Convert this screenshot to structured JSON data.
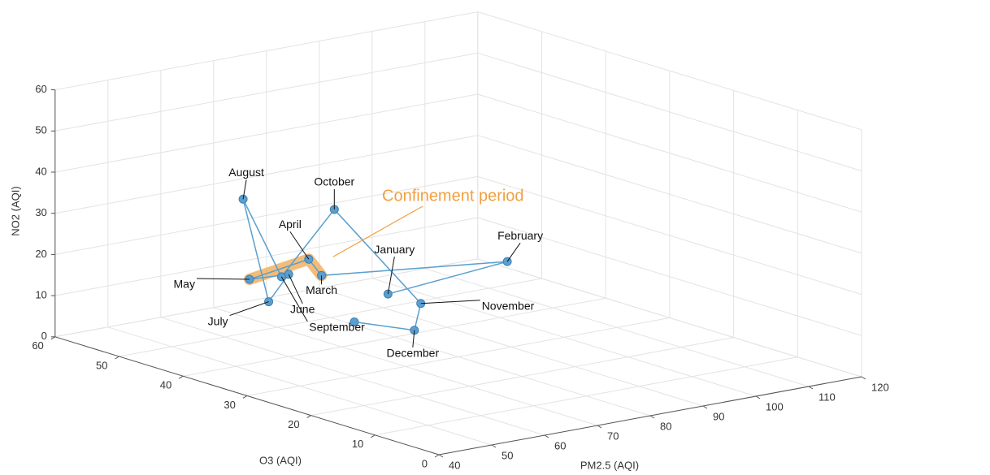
{
  "chart_data": {
    "type": "line3d",
    "xlabel": "PM2.5 (AQI)",
    "ylabel": "O3 (AQI)",
    "zlabel": "NO2 (AQI)",
    "categories": [
      "January",
      "February",
      "March",
      "April",
      "May",
      "June",
      "July",
      "August",
      "September",
      "October",
      "November",
      "December",
      null
    ],
    "x": [
      80,
      105,
      65,
      65,
      55,
      60,
      55,
      55,
      55,
      65,
      85,
      85,
      70
    ],
    "y": [
      41,
      43,
      39,
      41,
      42,
      40,
      39,
      43,
      37,
      37,
      40,
      41,
      38
    ],
    "z": [
      10,
      11,
      19,
      22,
      19,
      20,
      15,
      38,
      22,
      36,
      7,
      0,
      7
    ],
    "color": "#5a9fcf",
    "xlim": [
      40,
      120
    ],
    "xticks": [
      40,
      50,
      60,
      70,
      80,
      90,
      100,
      110,
      120
    ],
    "ylim": [
      0,
      60
    ],
    "yticks": [
      0,
      10,
      20,
      30,
      40,
      50,
      60
    ],
    "zlim": [
      0,
      60
    ],
    "zticks": [
      0,
      10,
      20,
      30,
      40,
      50,
      60
    ],
    "grid": true,
    "highlight": {
      "text": "Confinement period",
      "color": "#f0a040",
      "from": "March",
      "to": "May"
    }
  }
}
